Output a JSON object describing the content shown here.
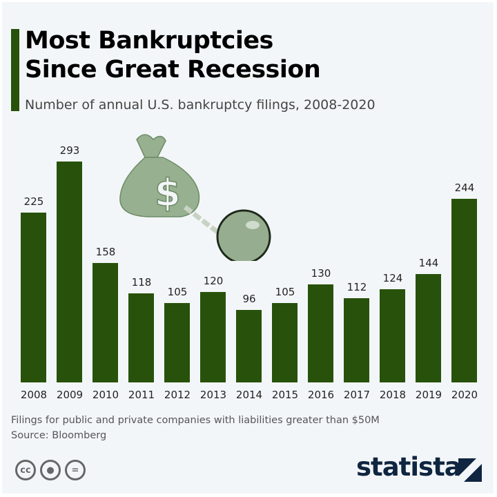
{
  "header": {
    "title_line1": "Most Bankruptcies",
    "title_line2": "Since Great Recession",
    "subtitle": "Number of annual U.S. bankruptcy filings, 2008-2020"
  },
  "footer": {
    "note": "Filings for public and private companies with liabilities greater than $50M",
    "source": "Source: Bloomberg",
    "brand": "statista"
  },
  "license_icons": [
    "cc-icon",
    "attribution-icon",
    "no-derivatives-icon"
  ],
  "colors": {
    "bar": "#28520b",
    "background": "#f3f6f8",
    "brand": "#0f2540"
  },
  "chart_data": {
    "type": "bar",
    "title": "Most Bankruptcies Since Great Recession",
    "subtitle": "Number of annual U.S. bankruptcy filings, 2008-2020",
    "xlabel": "",
    "ylabel": "",
    "categories": [
      "2008",
      "2009",
      "2010",
      "2011",
      "2012",
      "2013",
      "2014",
      "2015",
      "2016",
      "2017",
      "2018",
      "2019",
      "2020"
    ],
    "values": [
      225,
      293,
      158,
      118,
      105,
      120,
      96,
      105,
      130,
      112,
      124,
      144,
      244
    ],
    "labels": [
      "225",
      "293",
      "158",
      "118",
      "105",
      "120",
      "96",
      "105",
      "130",
      "112",
      "124",
      "144",
      "244"
    ],
    "grid": false,
    "legend": "none"
  }
}
